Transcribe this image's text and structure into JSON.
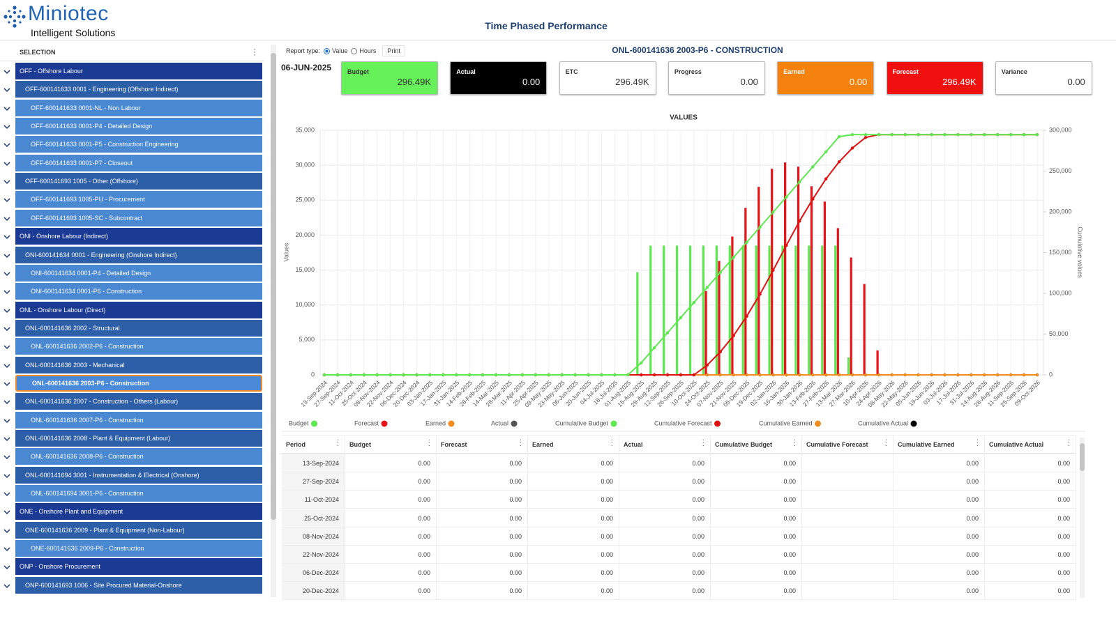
{
  "header": {
    "logo": "Miniotec",
    "tagline": "Intelligent Solutions",
    "title": "Time Phased Performance"
  },
  "sidebar": {
    "title": "SELECTION",
    "selected": 17,
    "items": [
      {
        "label": "OFF - Offshore Labour",
        "level": 0
      },
      {
        "label": "OFF-600141633 0001 - Engineering (Offshore Indirect)",
        "level": 1
      },
      {
        "label": "OFF-600141633 0001-NL - Non Labour",
        "level": 2
      },
      {
        "label": "OFF-600141633 0001-P4 - Detailed Design",
        "level": 2
      },
      {
        "label": "OFF-600141633 0001-P5 - Construction Engineering",
        "level": 2
      },
      {
        "label": "OFF-600141633 0001-P7 - Closeout",
        "level": 2
      },
      {
        "label": "OFF-600141693 1005 - Other (Offshore)",
        "level": 1
      },
      {
        "label": "OFF-600141693 1005-PU - Procurement",
        "level": 2
      },
      {
        "label": "OFF-600141693 1005-SC - Subcontract",
        "level": 2
      },
      {
        "label": "ONI - Onshore Labour (Indirect)",
        "level": 0
      },
      {
        "label": "ONI-600141634 0001 - Engineering (Onshore Indirect)",
        "level": 1
      },
      {
        "label": "ONI-600141634 0001-P4 - Detailed Design",
        "level": 2
      },
      {
        "label": "ONI-600141634 0001-P6 - Construction",
        "level": 2
      },
      {
        "label": "ONL - Onshore Labour (Direct)",
        "level": 0
      },
      {
        "label": "ONL-600141636 2002 - Structural",
        "level": 1
      },
      {
        "label": "ONL-600141636 2002-P6 - Construction",
        "level": 2
      },
      {
        "label": "ONL-600141636 2003 - Mechanical",
        "level": 1
      },
      {
        "label": "ONL-600141636 2003-P6 - Construction",
        "level": 2
      },
      {
        "label": "ONL-600141636 2007 - Construction - Others (Labour)",
        "level": 1
      },
      {
        "label": "ONL-600141636 2007-P6 - Construction",
        "level": 2
      },
      {
        "label": "ONL-600141636 2008 - Plant & Equipment (Labour)",
        "level": 1
      },
      {
        "label": "ONL-600141636 2008-P6 - Construction",
        "level": 2
      },
      {
        "label": "ONL-600141694 3001 - Instrumentation & Electrical (Onshore)",
        "level": 1
      },
      {
        "label": "ONL-600141694 3001-P6 - Construction",
        "level": 2
      },
      {
        "label": "ONE - Onshore Plant and Equipment",
        "level": 0
      },
      {
        "label": "ONE-600141636 2009 - Plant & Equipment (Non-Labour)",
        "level": 1
      },
      {
        "label": "ONE-600141636 2009-P6 - Construction",
        "level": 2
      },
      {
        "label": "ONP - Onshore Procurement",
        "level": 0
      },
      {
        "label": "ONP-600141693 1006 - Site Procured Material-Onshore",
        "level": 1
      }
    ]
  },
  "report": {
    "label": "Report type:",
    "options": [
      "Value",
      "Hours"
    ],
    "selected": 0,
    "print": "Print"
  },
  "heading": "ONL-600141636 2003-P6 - CONSTRUCTION",
  "date": "06-JUN-2025",
  "kpis": [
    {
      "label": "Budget",
      "value": "296.49K",
      "color": "#66f05a"
    },
    {
      "label": "Actual",
      "value": "0.00",
      "color": "#000000"
    },
    {
      "label": "ETC",
      "value": "296.49K",
      "color": "#ffffff"
    },
    {
      "label": "Progress",
      "value": "0.00",
      "color": "#ffffff"
    },
    {
      "label": "Earned",
      "value": "0.00",
      "color": "#f5820f"
    },
    {
      "label": "Forecast",
      "value": "296.49K",
      "color": "#f01010"
    },
    {
      "label": "Variance",
      "value": "0.00",
      "color": "#ffffff"
    }
  ],
  "chart_data": {
    "type": "bar",
    "title": "VALUES",
    "y_label": "Values",
    "y2_label": "Cumulative values",
    "grid": true,
    "legend": "bottom",
    "ylim": [
      0,
      35000
    ],
    "yticks": [
      0,
      {
        "value": 5000,
        "label": "5,000"
      },
      {
        "value": 10000,
        "label": "10,000"
      },
      {
        "value": 15000,
        "label": "15,000"
      },
      {
        "value": 20000,
        "label": "20,000"
      },
      {
        "value": 25000,
        "label": "25,000"
      },
      {
        "value": 30000,
        "label": "30,000"
      },
      {
        "value": 35000,
        "label": "35,000"
      }
    ],
    "y2lim": [
      0,
      300000
    ],
    "y2ticks": [
      0,
      {
        "value": 50000,
        "label": "50,000"
      },
      {
        "value": 100000,
        "label": "100,000"
      },
      {
        "value": 150000,
        "label": "150,000"
      },
      {
        "value": 200000,
        "label": "200,000"
      },
      {
        "value": 250000,
        "label": "250,000"
      },
      {
        "value": 300000,
        "label": "300,000"
      }
    ],
    "categories": [
      "13-Sep-2024",
      "27-Sep-2024",
      "11-Oct-2024",
      "25-Oct-2024",
      "08-Nov-2024",
      "22-Nov-2024",
      "06-Dec-2024",
      "20-Dec-2024",
      "03-Jan-2025",
      "17-Jan-2025",
      "31-Jan-2025",
      "14-Feb-2025",
      "28-Feb-2025",
      "14-Mar-2025",
      "28-Mar-2025",
      "11-Apr-2025",
      "25-Apr-2025",
      "09-May-2025",
      "23-May-2025",
      "06-Jun-2025",
      "20-Jun-2025",
      "04-Jul-2025",
      "18-Jul-2025",
      "01-Aug-2025",
      "15-Aug-2025",
      "29-Aug-2025",
      "12-Sep-2025",
      "26-Sep-2025",
      "10-Oct-2025",
      "24-Oct-2025",
      "07-Nov-2025",
      "21-Nov-2025",
      "05-Dec-2025",
      "19-Dec-2025",
      "02-Jan-2026",
      "16-Jan-2026",
      "30-Jan-2026",
      "13-Feb-2026",
      "27-Feb-2026",
      "13-Mar-2026",
      "27-Mar-2026",
      "10-Apr-2026",
      "24-Apr-2026",
      "08-May-2026",
      "22-May-2026",
      "05-Jun-2026",
      "19-Jun-2026",
      "03-Jul-2026",
      "17-Jul-2026",
      "31-Jul-2026",
      "14-Aug-2026",
      "28-Aug-2026",
      "11-Sep-2026",
      "25-Sep-2026",
      "09-Oct-2026"
    ],
    "series": [
      {
        "name": "Budget",
        "type": "bar",
        "color": "#5ee84f",
        "values": [
          0,
          0,
          0,
          0,
          0,
          0,
          0,
          0,
          0,
          0,
          0,
          0,
          0,
          0,
          0,
          0,
          0,
          0,
          0,
          0,
          0,
          0,
          0,
          0,
          14700,
          18500,
          18500,
          18500,
          18500,
          18500,
          18500,
          18500,
          18500,
          18500,
          18500,
          18500,
          18500,
          18500,
          18500,
          18500,
          2500,
          0,
          0,
          0,
          0,
          0,
          0,
          0,
          0,
          0,
          0,
          0,
          0,
          0,
          0
        ]
      },
      {
        "name": "Forecast",
        "type": "bar",
        "color": "#e8141a",
        "values": [
          0,
          0,
          0,
          0,
          0,
          0,
          0,
          0,
          0,
          0,
          0,
          0,
          0,
          0,
          0,
          0,
          0,
          0,
          0,
          0,
          0,
          0,
          0,
          0,
          0,
          0,
          0,
          0,
          0,
          12000,
          16300,
          19800,
          23900,
          26900,
          29500,
          30400,
          29800,
          27000,
          24800,
          21000,
          16800,
          13000,
          3500,
          0,
          0,
          0,
          0,
          0,
          0,
          0,
          0,
          0,
          0,
          0,
          0
        ]
      },
      {
        "name": "Earned",
        "type": "bar",
        "color": "#f28c1e",
        "values": [
          0,
          0,
          0,
          0,
          0,
          0,
          0,
          0,
          0,
          0,
          0,
          0,
          0,
          0,
          0,
          0,
          0,
          0,
          0,
          0,
          0,
          0,
          0,
          0,
          0,
          0,
          0,
          0,
          0,
          0,
          0,
          0,
          0,
          0,
          0,
          0,
          0,
          0,
          0,
          0,
          0,
          0,
          0,
          0,
          0,
          0,
          0,
          0,
          0,
          0,
          0,
          0,
          0,
          0,
          0
        ]
      },
      {
        "name": "Actual",
        "type": "bar",
        "color": "#555555",
        "values": [
          0,
          0,
          0,
          0,
          0,
          0,
          0,
          0,
          0,
          0,
          0,
          0,
          0,
          0,
          0,
          0,
          0,
          0,
          0,
          0,
          0,
          0,
          0,
          0,
          0,
          0,
          0,
          0,
          0,
          0,
          0,
          0,
          0,
          0,
          0,
          0,
          0,
          0,
          0,
          0,
          0,
          0,
          0,
          0,
          0,
          0,
          0,
          0,
          0,
          0,
          0,
          0,
          0,
          0,
          0
        ]
      },
      {
        "name": "Cumulative Budget",
        "type": "line",
        "axis": "y2",
        "color": "#5ee84f",
        "values": [
          0,
          0,
          0,
          0,
          0,
          0,
          0,
          0,
          0,
          0,
          0,
          0,
          0,
          0,
          0,
          0,
          0,
          0,
          0,
          0,
          0,
          0,
          0,
          0,
          14700,
          33200,
          51700,
          70200,
          88700,
          107200,
          125700,
          144200,
          162700,
          181200,
          199700,
          218200,
          236700,
          255200,
          273700,
          292200,
          294700,
          294700,
          294700,
          294700,
          294700,
          294700,
          294700,
          294700,
          294700,
          294700,
          294700,
          294700,
          294700,
          294700,
          294700
        ]
      },
      {
        "name": "Cumulative Forecast",
        "type": "line",
        "axis": "y2",
        "color": "#e01010",
        "values": [
          0,
          0,
          0,
          0,
          0,
          0,
          0,
          0,
          0,
          0,
          0,
          0,
          0,
          0,
          0,
          0,
          0,
          0,
          0,
          0,
          0,
          0,
          0,
          0,
          0,
          0,
          0,
          0,
          0,
          12000,
          28300,
          48100,
          72000,
          98900,
          128400,
          158800,
          188600,
          215600,
          240400,
          261400,
          278200,
          291200,
          294700,
          294700,
          294700,
          294700,
          294700,
          294700,
          294700,
          294700,
          294700,
          294700,
          294700,
          294700,
          294700
        ]
      },
      {
        "name": "Cumulative Earned",
        "type": "line",
        "axis": "y2",
        "color": "#f28c1e",
        "values": [
          0,
          0,
          0,
          0,
          0,
          0,
          0,
          0,
          0,
          0,
          0,
          0,
          0,
          0,
          0,
          0,
          0,
          0,
          0,
          0,
          0,
          0,
          0,
          0,
          0,
          0,
          0,
          0,
          0,
          0,
          0,
          0,
          0,
          0,
          0,
          0,
          0,
          0,
          0,
          0,
          0,
          0,
          0,
          0,
          0,
          0,
          0,
          0,
          0,
          0,
          0,
          0,
          0,
          0,
          0
        ]
      },
      {
        "name": "Cumulative Actual",
        "type": "line",
        "axis": "y2",
        "color": "#000000",
        "values": [
          0,
          0,
          0,
          0,
          0,
          0,
          0,
          0,
          0,
          0,
          0,
          0,
          0,
          0,
          0,
          0,
          0,
          0,
          0,
          0,
          0,
          0,
          0,
          0,
          0,
          0,
          0,
          0,
          0,
          0,
          0,
          0,
          0,
          0,
          0,
          0,
          0,
          0,
          0,
          0,
          0,
          0,
          0,
          0,
          0,
          0,
          0,
          0,
          0,
          0,
          0,
          0,
          0,
          0,
          0
        ]
      }
    ]
  },
  "table": {
    "columns": [
      "Period",
      "Budget",
      "Forecast",
      "Earned",
      "Actual",
      "Cumulative Budget",
      "Cumulative Forecast",
      "Cumulative Earned",
      "Cumulative Actual"
    ],
    "rows": [
      [
        "13-Sep-2024",
        "0.00",
        "0.00",
        "0.00",
        "0.00",
        "0.00",
        null,
        "0.00",
        "0.00"
      ],
      [
        "27-Sep-2024",
        "0.00",
        "0.00",
        "0.00",
        "0.00",
        "0.00",
        null,
        "0.00",
        "0.00"
      ],
      [
        "11-Oct-2024",
        "0.00",
        "0.00",
        "0.00",
        "0.00",
        "0.00",
        null,
        "0.00",
        "0.00"
      ],
      [
        "25-Oct-2024",
        "0.00",
        "0.00",
        "0.00",
        "0.00",
        "0.00",
        null,
        "0.00",
        "0.00"
      ],
      [
        "08-Nov-2024",
        "0.00",
        "0.00",
        "0.00",
        "0.00",
        "0.00",
        null,
        "0.00",
        "0.00"
      ],
      [
        "22-Nov-2024",
        "0.00",
        "0.00",
        "0.00",
        "0.00",
        "0.00",
        null,
        "0.00",
        "0.00"
      ],
      [
        "06-Dec-2024",
        "0.00",
        "0.00",
        "0.00",
        "0.00",
        "0.00",
        null,
        "0.00",
        "0.00"
      ],
      [
        "20-Dec-2024",
        "0.00",
        "0.00",
        "0.00",
        "0.00",
        "0.00",
        null,
        "0.00",
        "0.00"
      ]
    ]
  }
}
